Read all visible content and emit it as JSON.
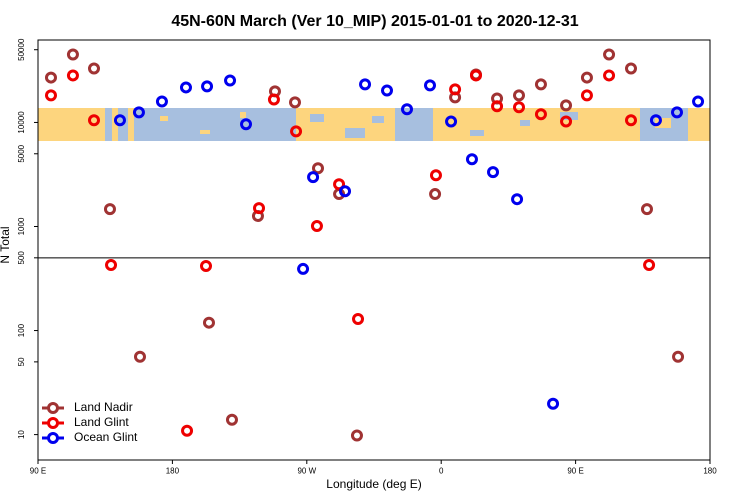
{
  "chart_data": {
    "type": "scatter",
    "title": "45N-60N March (Ver 10_MIP)   2015-01-01 to 2020-12-31",
    "x_label": "Longitude (deg E)",
    "y_label": "N Total",
    "log_y": true,
    "legend_position": "bottom-left",
    "xlim": [
      90,
      540
    ],
    "xticks": [
      {
        "value": 90,
        "label": "90 E"
      },
      180,
      {
        "value": 270,
        "label": "90 W"
      },
      {
        "value": 360,
        "label": "0"
      },
      {
        "value": 450,
        "label": "90 E"
      },
      {
        "value": 540,
        "label": "180"
      }
    ],
    "ylim": [
      5.7,
      62000
    ],
    "yticks": [
      10,
      50,
      100,
      500,
      1000,
      5000,
      10000,
      50000
    ],
    "hline": 500,
    "series": [
      {
        "name": "Land Nadir",
        "color": "#a03333",
        "x": [
          98.7,
          113.4,
          127.5,
          138.2,
          158.3,
          204.5,
          219.9,
          237.3,
          248.7,
          262.1,
          277.5,
          291.6,
          303.6,
          355.9,
          369.3,
          383.3,
          397.4,
          412.1,
          426.8,
          443.6,
          457.6,
          472.4,
          487.1,
          497.8,
          518.6
        ],
        "values": [
          27000,
          45000,
          33000,
          1470,
          56,
          119,
          13.9,
          1260,
          19900,
          15600,
          3630,
          2050,
          9.8,
          2050,
          17400,
          28900,
          17000,
          18200,
          23200,
          14600,
          27000,
          45000,
          33000,
          1470,
          56
        ]
      },
      {
        "name": "Land Glint",
        "color": "#ee0000",
        "x": [
          98.7,
          113.4,
          127.5,
          138.9,
          189.8,
          202.5,
          238,
          248,
          262.8,
          276.8,
          291.6,
          304.3,
          356.5,
          369.3,
          383.3,
          397.4,
          412.1,
          426.8,
          443.6,
          457.6,
          472.4,
          487.1,
          499.2
        ],
        "values": [
          18200,
          28300,
          10500,
          427,
          10.9,
          417,
          1500,
          16600,
          8200,
          1010,
          2550,
          129,
          3110,
          20800,
          28300,
          14300,
          14000,
          12000,
          10200,
          18200,
          28300,
          10500,
          427
        ]
      },
      {
        "name": "Ocean Glint",
        "color": "#0000ee",
        "x": [
          144.9,
          157.6,
          173,
          189.1,
          203.2,
          218.6,
          229.3,
          267.5,
          274.2,
          295.6,
          309,
          323.7,
          337.1,
          352.5,
          366.6,
          380.6,
          394.7,
          410.8,
          434.9,
          503.8,
          517.9,
          532
        ],
        "values": [
          10500,
          12500,
          15900,
          21700,
          22200,
          25300,
          9600,
          391,
          2980,
          2180,
          23200,
          20300,
          13400,
          22700,
          10200,
          4430,
          3330,
          1830,
          19.8,
          10500,
          12500,
          15900
        ]
      }
    ]
  }
}
